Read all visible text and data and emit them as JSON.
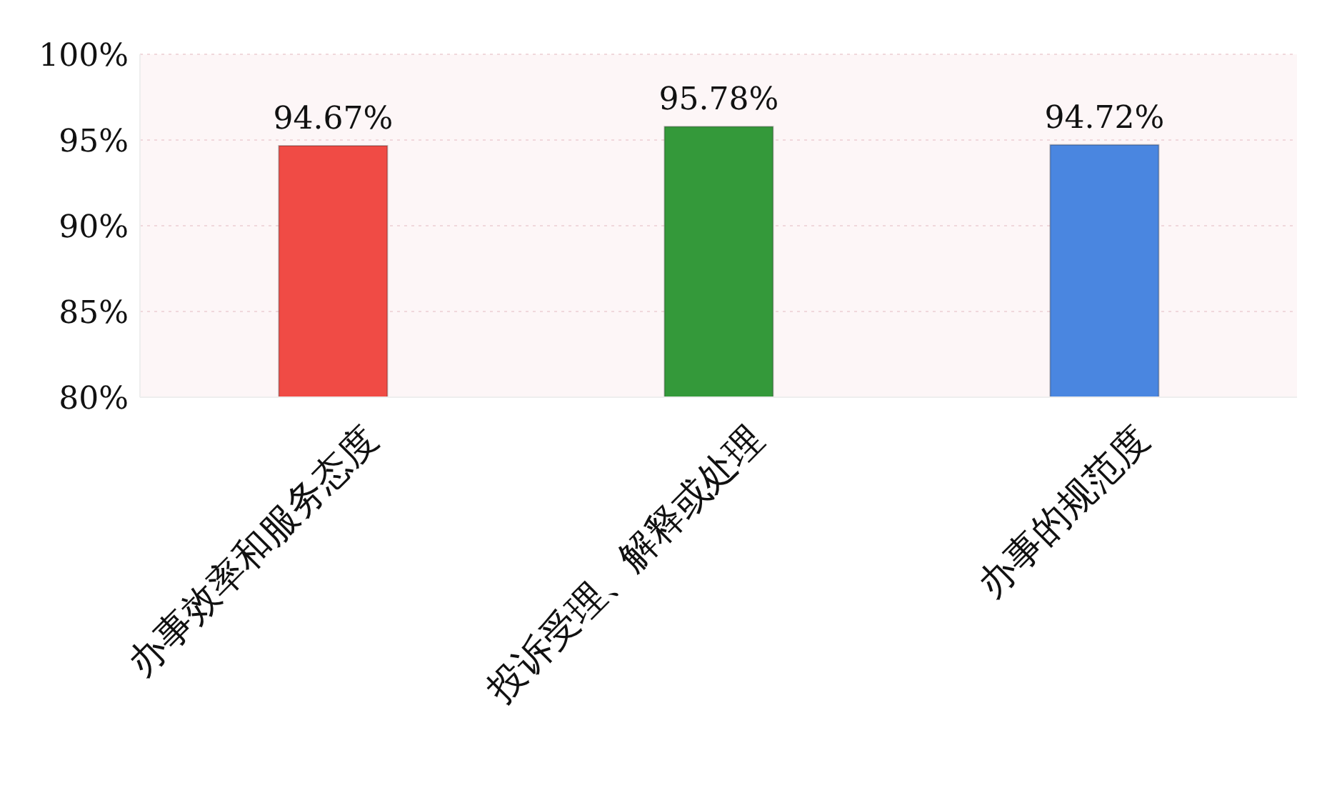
{
  "chart_data": {
    "type": "bar",
    "categories": [
      "办事效率和服务态度",
      "投诉受理、解释或处理",
      "办事的规范度"
    ],
    "values": [
      94.67,
      95.78,
      94.72
    ],
    "colors": [
      "#f04b45",
      "#34993a",
      "#4a86e0"
    ],
    "value_labels": [
      "94.67%",
      "95.78%",
      "94.72%"
    ],
    "ylim": [
      80,
      100
    ],
    "yticks": [
      {
        "value": 80,
        "label": "80%"
      },
      {
        "value": 85,
        "label": "85%"
      },
      {
        "value": 90,
        "label": "90%"
      },
      {
        "value": 95,
        "label": "95%"
      },
      {
        "value": 100,
        "label": "100%"
      }
    ],
    "grid": "y"
  }
}
